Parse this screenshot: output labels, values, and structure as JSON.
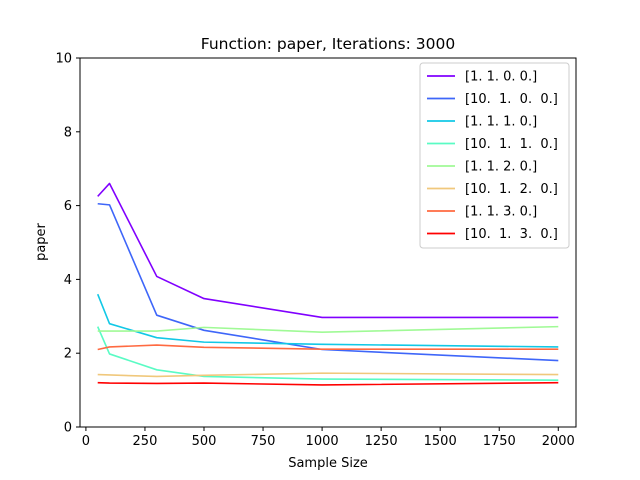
{
  "chart_data": {
    "type": "line",
    "title": "Function: paper, Iterations: 3000",
    "xlabel": "Sample Size",
    "ylabel": "paper",
    "xlim": [
      -25,
      2075
    ],
    "ylim": [
      0,
      10
    ],
    "xticks": [
      0,
      250,
      500,
      750,
      1000,
      1250,
      1500,
      1750,
      2000
    ],
    "yticks": [
      0,
      2,
      4,
      6,
      8,
      10
    ],
    "grid": false,
    "legend_position": "top-right",
    "x": [
      50,
      100,
      300,
      500,
      1000,
      2000
    ],
    "series": [
      {
        "name": "[1. 1. 0. 0.]",
        "color": "#8000ff",
        "values": [
          6.25,
          6.6,
          4.08,
          3.48,
          2.97,
          2.97
        ]
      },
      {
        "name": "[10.  1.  0.  0.]",
        "color": "#3e66f9",
        "values": [
          6.05,
          6.02,
          3.03,
          2.62,
          2.1,
          1.8
        ]
      },
      {
        "name": "[1. 1. 1. 0.]",
        "color": "#12c8e6",
        "values": [
          3.6,
          2.8,
          2.42,
          2.3,
          2.24,
          2.17
        ]
      },
      {
        "name": "[10.  1.  1.  0.]",
        "color": "#5afbc4",
        "values": [
          2.72,
          1.98,
          1.55,
          1.37,
          1.3,
          1.27
        ]
      },
      {
        "name": "[1. 1. 2. 0.]",
        "color": "#a0fa96",
        "values": [
          2.6,
          2.6,
          2.6,
          2.7,
          2.57,
          2.72
        ]
      },
      {
        "name": "[10.  1.  2.  0.]",
        "color": "#f0c87c",
        "values": [
          1.42,
          1.41,
          1.37,
          1.4,
          1.46,
          1.42
        ]
      },
      {
        "name": "[1. 1. 3. 0.]",
        "color": "#ff6a41",
        "values": [
          2.1,
          2.17,
          2.22,
          2.16,
          2.11,
          2.11
        ]
      },
      {
        "name": "[10.  1.  3.  0.]",
        "color": "#ff0000",
        "values": [
          1.2,
          1.19,
          1.18,
          1.19,
          1.14,
          1.2
        ]
      }
    ]
  }
}
